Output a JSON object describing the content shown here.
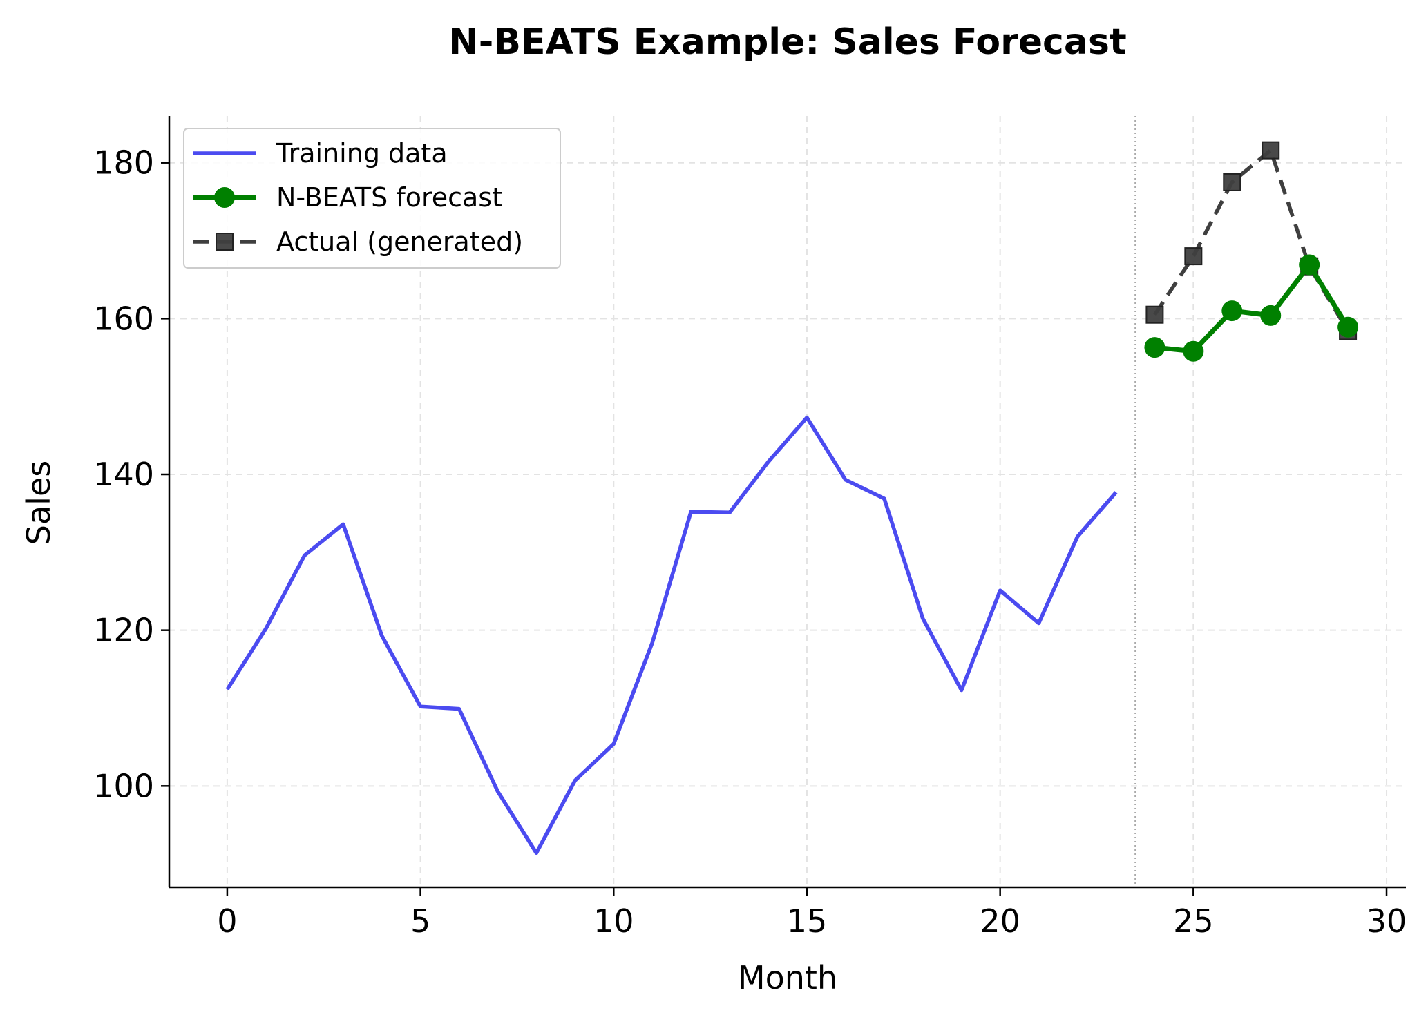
{
  "chart_data": {
    "type": "line",
    "title": "N-BEATS Example: Sales Forecast",
    "xlabel": "Month",
    "ylabel": "Sales",
    "xlim": [
      -1.5,
      30.5
    ],
    "ylim": [
      87,
      186
    ],
    "xticks": [
      0,
      5,
      10,
      15,
      20,
      25,
      30
    ],
    "yticks": [
      100,
      120,
      140,
      160,
      180
    ],
    "grid": true,
    "legend_position": "upper-left",
    "forecast_boundary_x": 23.5,
    "series": [
      {
        "name": "Training data",
        "color": "#4b4bf0",
        "style": "solid",
        "marker": "none",
        "x": [
          0,
          1,
          2,
          3,
          4,
          5,
          6,
          7,
          8,
          9,
          10,
          11,
          12,
          13,
          14,
          15,
          16,
          17,
          18,
          19,
          20,
          21,
          22,
          23
        ],
        "values": [
          112.4,
          120.2,
          129.6,
          133.6,
          119.3,
          110.2,
          109.9,
          99.3,
          91.4,
          100.7,
          105.4,
          118.4,
          135.2,
          135.1,
          141.6,
          147.3,
          139.3,
          136.9,
          121.5,
          112.3,
          125.1,
          120.9,
          132.0,
          137.7
        ]
      },
      {
        "name": "N-BEATS forecast",
        "color": "#008000",
        "style": "solid",
        "marker": "circle",
        "x": [
          24,
          25,
          26,
          27,
          28,
          29
        ],
        "values": [
          156.3,
          155.8,
          161.0,
          160.4,
          166.9,
          158.9
        ]
      },
      {
        "name": "Actual (generated)",
        "color": "#3f3f3f",
        "style": "dashed",
        "marker": "square",
        "x": [
          24,
          25,
          26,
          27,
          28,
          29
        ],
        "values": [
          160.5,
          168.0,
          177.5,
          181.6,
          166.7,
          158.4
        ]
      }
    ]
  }
}
